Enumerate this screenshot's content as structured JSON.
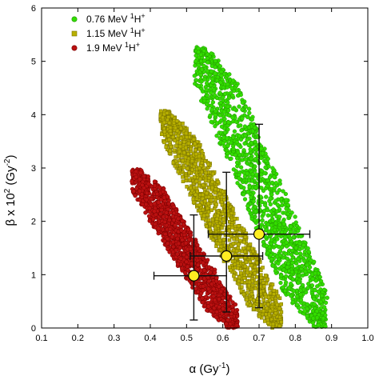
{
  "chart_data": {
    "type": "scatter",
    "xlabel": "α (Gy",
    "xlabel_sup": "-1",
    "xlabel_close": ")",
    "ylabel": "β x 10",
    "ylabel_sup1": "2",
    "ylabel_mid": " (Gy",
    "ylabel_sup2": "-2",
    "ylabel_close": ")",
    "xlim": [
      0.1,
      1.0
    ],
    "ylim": [
      0,
      6
    ],
    "xticks": [
      0.1,
      0.2,
      0.3,
      0.4,
      0.5,
      0.6,
      0.7,
      0.8,
      0.9,
      1.0
    ],
    "xtick_labels": [
      "0.1",
      "0.2",
      "0.3",
      "0.4",
      "0.5",
      "0.6",
      "0.7",
      "0.8",
      "0.9",
      "1.0"
    ],
    "yticks": [
      0,
      1,
      2,
      3,
      4,
      5,
      6
    ],
    "ytick_labels": [
      "0",
      "1",
      "2",
      "3",
      "4",
      "5",
      "6"
    ],
    "grid": false,
    "legend_position": "top-left",
    "series": [
      {
        "name": "0.76 MeV",
        "name_sup": "1",
        "name_rest": "H",
        "name_sup2": "+",
        "color": "#33dd00",
        "edge": "#229900",
        "marker": "circle",
        "band_top": [
          0.54,
          5.25
        ],
        "band_bottom": [
          0.87,
          0.0
        ],
        "band_width": 0.12
      },
      {
        "name": "1.15 MeV",
        "name_sup": "1",
        "name_rest": "H",
        "name_sup2": "+",
        "color": "#b8b000",
        "edge": "#7a7400",
        "marker": "square",
        "band_top": [
          0.44,
          4.05
        ],
        "band_bottom": [
          0.75,
          0.0
        ],
        "band_width": 0.1
      },
      {
        "name": "1.9 MeV",
        "name_sup": "1",
        "name_rest": "H",
        "name_sup2": "+",
        "color": "#bb1111",
        "edge": "#770000",
        "marker": "circle",
        "band_top": [
          0.36,
          2.95
        ],
        "band_bottom": [
          0.63,
          0.0
        ],
        "band_width": 0.09
      }
    ],
    "mean_points": [
      {
        "x": 0.52,
        "y": 0.98,
        "xerr": [
          0.41,
          0.61
        ],
        "yerr": [
          0.15,
          2.12
        ]
      },
      {
        "x": 0.61,
        "y": 1.35,
        "xerr": [
          0.51,
          0.71
        ],
        "yerr": [
          0.3,
          2.92
        ]
      },
      {
        "x": 0.7,
        "y": 1.76,
        "xerr": [
          0.56,
          0.84
        ],
        "yerr": [
          0.38,
          3.82
        ]
      }
    ],
    "mean_marker_color": "#ffee22"
  }
}
